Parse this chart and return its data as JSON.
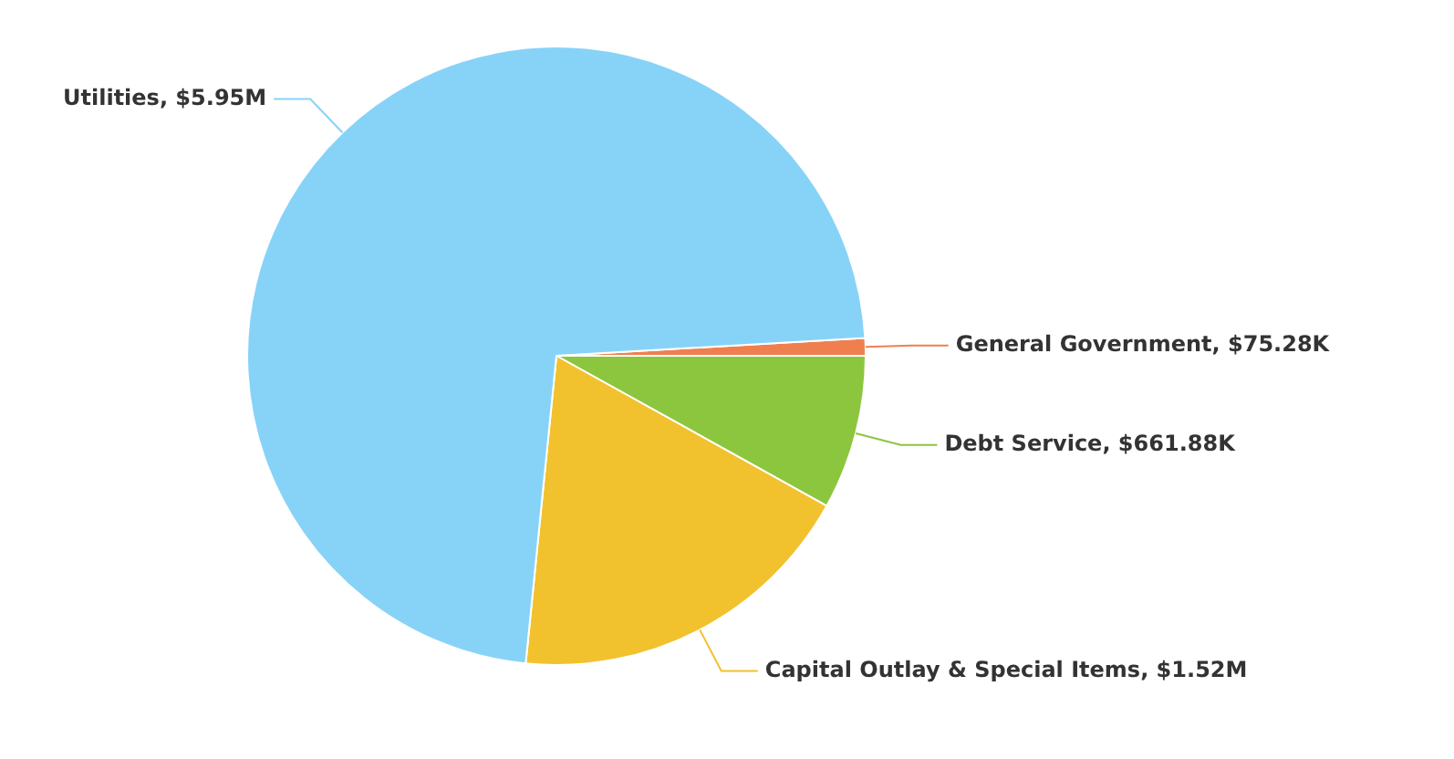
{
  "chart_data": {
    "type": "pie",
    "categories": [
      "General Government",
      "Debt Service",
      "Capital Outlay & Special Items",
      "Utilities"
    ],
    "values": [
      75280,
      661880,
      1520000,
      5950000
    ],
    "value_labels": [
      "$75.28K",
      "$661.88K",
      "$1.52M",
      "$5.95M"
    ],
    "colors": [
      "#f07f4f",
      "#8cc63f",
      "#f2c12e",
      "#87d3f8"
    ],
    "legend": false
  }
}
